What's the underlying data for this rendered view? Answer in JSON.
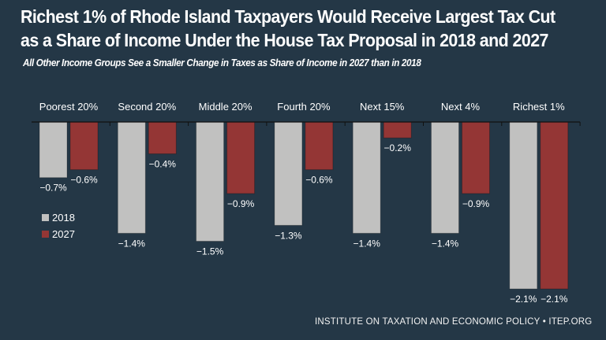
{
  "chart_data": {
    "type": "bar",
    "title": "Richest 1% of Rhode Island Taxpayers Would Receive Largest Tax Cut as a Share of Income Under the House Tax Proposal in 2018 and 2027",
    "subtitle": "All Other Income Groups See a Smaller Change in Taxes as Share of Income in 2027  than in 2018",
    "xlabel": "",
    "ylabel": "",
    "ylim": [
      -2.1,
      0
    ],
    "grid": false,
    "legend_position": "left",
    "categories": [
      "Poorest 20%",
      "Second 20%",
      "Middle 20%",
      "Fourth 20%",
      "Next 15%",
      "Next 4%",
      "Richest 1%"
    ],
    "series": [
      {
        "name": "2018",
        "color": "#c1c1c0",
        "values": [
          -0.7,
          -1.4,
          -1.5,
          -1.3,
          -1.4,
          -1.4,
          -2.1
        ],
        "labels": [
          "−0.7%",
          "−1.4%",
          "−1.5%",
          "−1.3%",
          "−1.4%",
          "−1.4%",
          "−2.1%"
        ]
      },
      {
        "name": "2027",
        "color": "#943635",
        "values": [
          -0.6,
          -0.4,
          -0.9,
          -0.6,
          -0.2,
          -0.9,
          -2.1
        ],
        "labels": [
          "−0.6%",
          "−0.4%",
          "−0.9%",
          "−0.6%",
          "−0.2%",
          "−0.9%",
          "−2.1%"
        ]
      }
    ]
  },
  "footer": "INSTITUTE ON TAXATION AND ECONOMIC POLICY • ITEP.ORG",
  "colors": {
    "background": "#243746",
    "axis": "#1a1a1a"
  }
}
